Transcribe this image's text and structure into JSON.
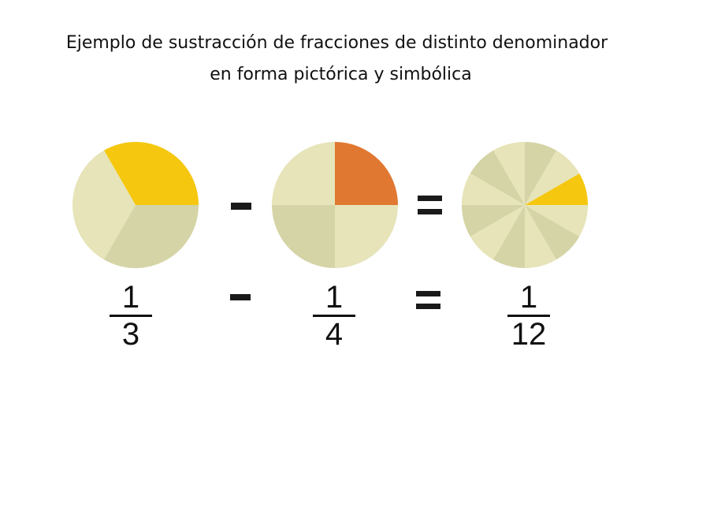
{
  "title": {
    "line1": "Ejemplo de sustracción de fracciones de distinto denominador",
    "line2": "en forma pictórica y simbólica"
  },
  "colors": {
    "light": "#E6E4B8",
    "dark": "#D4D4A6",
    "yellow": "#F5C70F",
    "orange": "#E07832",
    "operator": "#1a1a1a"
  },
  "pies": [
    {
      "denominator": 3,
      "shaded": 1,
      "shade_color": "yellow"
    },
    {
      "denominator": 4,
      "shaded": 1,
      "shade_color": "orange"
    },
    {
      "denominator": 12,
      "shaded": 1,
      "shade_color": "yellow"
    }
  ],
  "fractions": [
    {
      "num": "1",
      "den": "3"
    },
    {
      "num": "1",
      "den": "4"
    },
    {
      "num": "1",
      "den": "12"
    }
  ],
  "operators": [
    "minus",
    "equals"
  ]
}
